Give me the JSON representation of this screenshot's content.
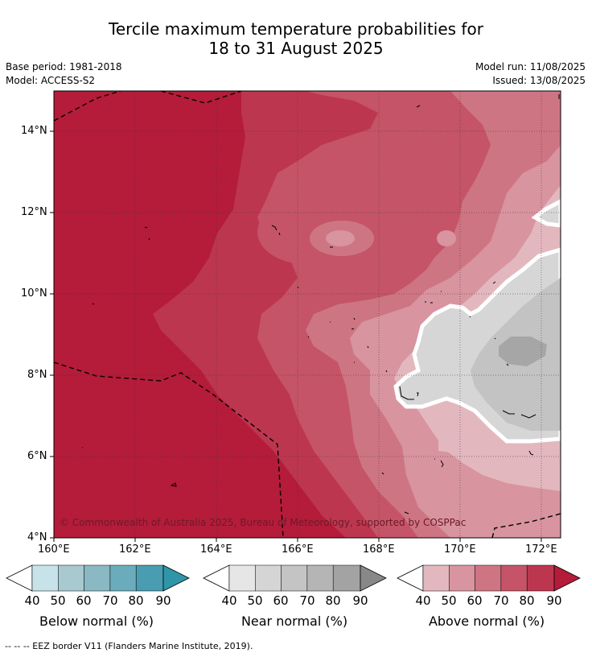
{
  "header": {
    "title_line1": "Tercile maximum temperature probabilities for",
    "title_line2": "18 to 31 August 2025",
    "base_period": "Base period: 1981-2018",
    "model": "Model: ACCESS-S2",
    "model_run": "Model run: 11/08/2025",
    "issued": "Issued: 13/08/2025"
  },
  "map": {
    "lat_labels": [
      "14°N",
      "12°N",
      "10°N",
      "8°N",
      "6°N",
      "4°N"
    ],
    "lon_labels": [
      "160°E",
      "162°E",
      "164°E",
      "166°E",
      "168°E",
      "170°E",
      "172°E"
    ],
    "copyright": "© Commonwealth of Australia 2025, Bureau of Meteorology, supported by COSPPac",
    "colors": {
      "above_90": "#b41c3a",
      "above_80": "#bd3650",
      "above_70": "#c55468",
      "above_60": "#ce7583",
      "above_50": "#d8949f",
      "above_40": "#e2b8be",
      "near_50": "#d6d6d6",
      "near_60": "#c3c3c3",
      "near_70": "#a6a6a6"
    }
  },
  "legends": [
    {
      "title": "Below normal (%)",
      "ticks": [
        "40",
        "50",
        "60",
        "70",
        "80",
        "90"
      ],
      "colors": [
        "#c7e2e8",
        "#a8c9cf",
        "#8ab8c3",
        "#6aacbc",
        "#4a9cb0",
        "#3095a8"
      ]
    },
    {
      "title": "Near normal (%)",
      "ticks": [
        "40",
        "50",
        "60",
        "70",
        "80",
        "90"
      ],
      "colors": [
        "#e6e6e6",
        "#d5d5d5",
        "#c4c4c4",
        "#b5b5b5",
        "#a3a3a3",
        "#888888"
      ]
    },
    {
      "title": "Above normal (%)",
      "ticks": [
        "40",
        "50",
        "60",
        "70",
        "80",
        "90"
      ],
      "colors": [
        "#e2b8be",
        "#d8949f",
        "#ce7583",
        "#c55468",
        "#bd3650",
        "#b41c3a"
      ]
    }
  ],
  "footnote": "-- -- -- EEZ border V11 (Flanders Marine Institute, 2019)."
}
